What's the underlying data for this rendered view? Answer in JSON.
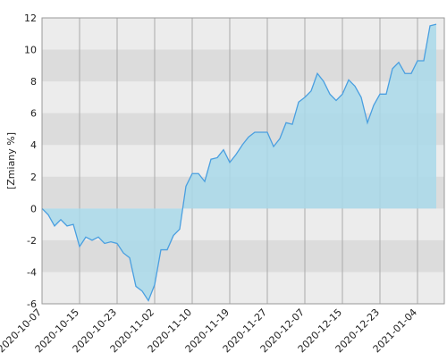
{
  "chart_data": {
    "type": "area",
    "y_label": "[Zmiany %]",
    "categories": [
      "2020-10-07",
      null,
      null,
      null,
      null,
      null,
      "2020-10-15",
      null,
      null,
      null,
      null,
      null,
      "2020-10-23",
      null,
      null,
      null,
      null,
      null,
      "2020-11-02",
      null,
      null,
      null,
      null,
      null,
      "2020-11-10",
      null,
      null,
      null,
      null,
      null,
      "2020-11-19",
      null,
      null,
      null,
      null,
      null,
      "2020-11-27",
      null,
      null,
      null,
      null,
      null,
      "2020-12-07",
      null,
      null,
      null,
      null,
      null,
      "2020-12-15",
      null,
      null,
      null,
      null,
      null,
      "2020-12-23",
      null,
      null,
      null,
      null,
      null,
      "2021-01-04",
      null,
      null,
      null
    ],
    "series": [
      {
        "color": "#4a9fe0",
        "fill": "#a9d9ea",
        "values": [
          0,
          -0.4,
          -1.1,
          -0.7,
          -1.1,
          -1.0,
          -2.4,
          -1.8,
          -2.0,
          -1.8,
          -2.2,
          -2.1,
          -2.2,
          -2.8,
          -3.1,
          -4.9,
          -5.2,
          -5.8,
          -4.8,
          -2.6,
          -2.6,
          -1.7,
          -1.3,
          1.4,
          2.2,
          2.2,
          1.7,
          3.1,
          3.2,
          3.7,
          2.9,
          3.4,
          4.0,
          4.5,
          4.8,
          4.8,
          4.8,
          3.9,
          4.4,
          5.4,
          5.3,
          6.7,
          7.0,
          7.4,
          8.5,
          8.0,
          7.2,
          6.8,
          7.2,
          8.1,
          7.7,
          7.0,
          5.4,
          6.5,
          7.2,
          7.2,
          8.8,
          9.2,
          8.5,
          8.5,
          9.3,
          9.3,
          11.5,
          11.6
        ]
      }
    ],
    "ylim": [
      -6,
      12
    ],
    "yticks": [
      -6,
      -4,
      -2,
      0,
      2,
      4,
      6,
      8,
      10,
      12
    ],
    "grid": true
  }
}
